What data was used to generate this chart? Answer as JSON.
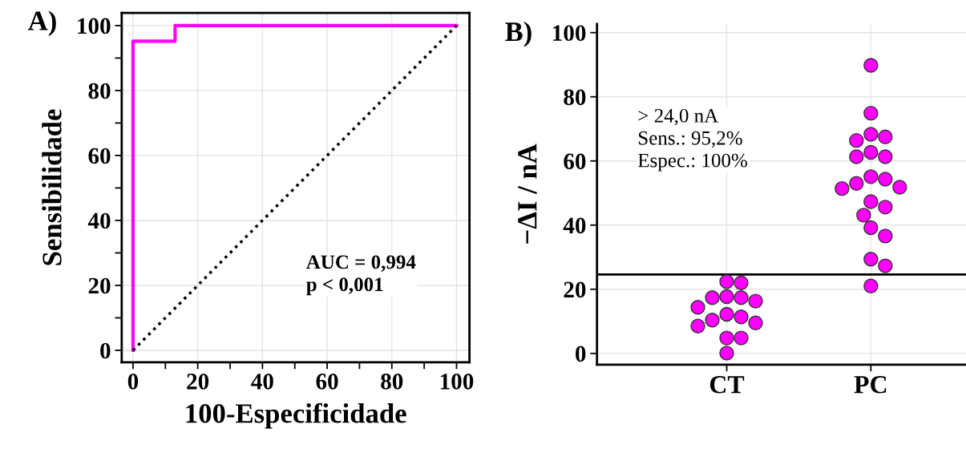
{
  "chart_data": [
    {
      "type": "line",
      "xlabel": "100-Especificidade",
      "ylabel": "Sensibilidade",
      "annotations": [
        "A)",
        "AUC = 0,994\np < 0,001"
      ],
      "series": [
        {
          "type": "line",
          "color": "#ff00ff",
          "line_style": "solid",
          "x": [
            0,
            0,
            13,
            13,
            100
          ],
          "values": [
            0,
            95.2,
            95.2,
            100,
            100
          ]
        },
        {
          "type": "line",
          "color": "#000000",
          "line_style": "dotted",
          "x": [
            0,
            100
          ],
          "values": [
            0,
            100
          ]
        }
      ],
      "xlim": [
        -3.5,
        104
      ],
      "ylim": [
        -3.7,
        103.9
      ],
      "xticks": [
        0,
        {
          "value": 10,
          "label": null
        },
        20,
        {
          "value": 30,
          "label": null
        },
        40,
        {
          "value": 50,
          "label": null
        },
        60,
        {
          "value": 70,
          "label": null
        },
        80,
        {
          "value": 90,
          "label": null
        },
        100
      ],
      "yticks": [
        0,
        {
          "value": 10,
          "label": null
        },
        20,
        {
          "value": 30,
          "label": null
        },
        40,
        {
          "value": 50,
          "label": null
        },
        60,
        {
          "value": 70,
          "label": null
        },
        80,
        {
          "value": 90,
          "label": null
        },
        100
      ],
      "grid": true,
      "legend": false,
      "marker": "none"
    },
    {
      "type": "scatter",
      "ylabel": "−ΔI / nA",
      "annotations": [
        "B)",
        "> 24,0 nA\nSens.: 95,2%\nEspec.: 100%"
      ],
      "categories": [
        "CT",
        "PC"
      ],
      "series": [
        {
          "color": "#ff00ff",
          "x": [
            "CT",
            "CT",
            "CT",
            "CT",
            "CT",
            "CT",
            "CT",
            "CT",
            "CT",
            "CT",
            "CT",
            "CT",
            "CT",
            "CT",
            "CT"
          ],
          "values": [
            22.4,
            22.0,
            17.7,
            17.4,
            17.4,
            16.3,
            14.4,
            12.2,
            11.4,
            10.4,
            9.5,
            8.5,
            4.8,
            4.8,
            0.1
          ]
        },
        {
          "color": "#ff00ff",
          "x": [
            "PC",
            "PC",
            "PC",
            "PC",
            "PC",
            "PC",
            "PC",
            "PC",
            "PC",
            "PC",
            "PC",
            "PC",
            "PC",
            "PC",
            "PC",
            "PC",
            "PC",
            "PC",
            "PC",
            "PC",
            "PC"
          ],
          "values": [
            89.8,
            74.9,
            68.3,
            67.5,
            66.4,
            62.7,
            61.3,
            61.3,
            55.1,
            54.3,
            53.0,
            51.8,
            51.4,
            47.3,
            45.6,
            43.1,
            39.2,
            36.6,
            29.4,
            27.3,
            21.0
          ]
        }
      ],
      "ref_lines": [
        {
          "axis": "y",
          "value": 24.6,
          "color": "#000000",
          "line_style": "solid"
        }
      ],
      "ylim": [
        -3.5,
        102.7
      ],
      "yticks": [
        0,
        20,
        40,
        60,
        80,
        100
      ],
      "grid": true,
      "legend": false,
      "marker": "circle"
    }
  ]
}
